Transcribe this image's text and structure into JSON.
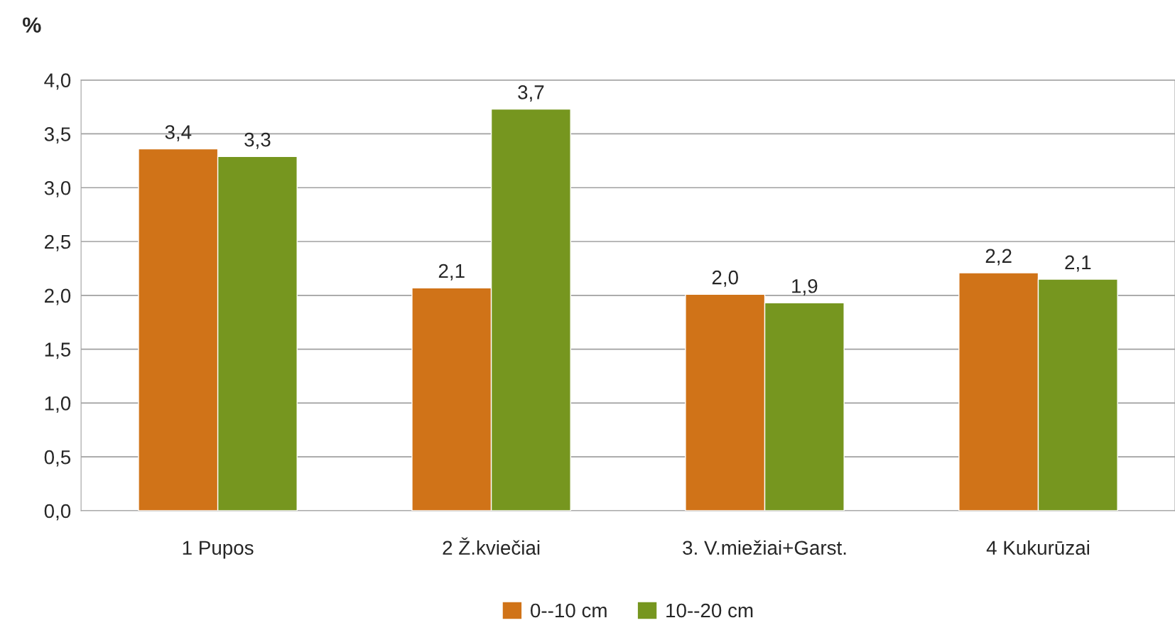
{
  "chart_data": {
    "type": "bar",
    "ylabel": "%",
    "categories": [
      "1 Pupos",
      "2 Ž.kviečiai",
      "3. V.miežiai+Garst.",
      "4 Kukurūzai"
    ],
    "series": [
      {
        "name": "0--10 cm",
        "color": "#d07318",
        "values": [
          3.36,
          2.07,
          2.01,
          2.21
        ],
        "value_labels": [
          "3,4",
          "2,1",
          "2,0",
          "2,2"
        ]
      },
      {
        "name": "10--20 cm",
        "color": "#76961f",
        "values": [
          3.29,
          3.73,
          1.93,
          2.15
        ],
        "value_labels": [
          "3,3",
          "3,7",
          "1,9",
          "2,1"
        ]
      }
    ],
    "ylim": [
      0,
      4
    ],
    "yticks": [
      {
        "value": 0,
        "label": "0,0"
      },
      {
        "value": 0.5,
        "label": "0,5"
      },
      {
        "value": 1,
        "label": "1,0"
      },
      {
        "value": 1.5,
        "label": "1,5"
      },
      {
        "value": 2,
        "label": "2,0"
      },
      {
        "value": 2.5,
        "label": "2,5"
      },
      {
        "value": 3,
        "label": "3,0"
      },
      {
        "value": 3.5,
        "label": "3,5"
      },
      {
        "value": 4,
        "label": "4,0"
      }
    ],
    "grid": "y",
    "legend": "bottom"
  }
}
